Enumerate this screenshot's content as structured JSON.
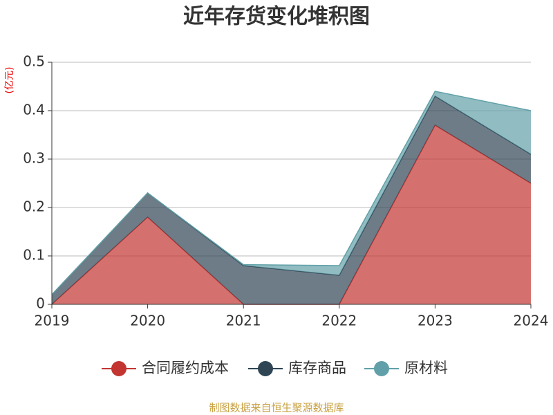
{
  "chart_data": {
    "type": "stacked_area",
    "title": "近年存货变化堆积图",
    "y_unit": "(亿元)",
    "source": "制图数据来自恒生聚源数据库",
    "categories": [
      "2019",
      "2020",
      "2021",
      "2022",
      "2023",
      "2024"
    ],
    "series": [
      {
        "name": "合同履约成本",
        "color": "#c23531",
        "values": [
          0,
          0.18,
          0,
          0,
          0.37,
          0.25
        ]
      },
      {
        "name": "库存商品",
        "color": "#2f4554",
        "values": [
          0.02,
          0.05,
          0.08,
          0.06,
          0.06,
          0.06
        ]
      },
      {
        "name": "原材料",
        "color": "#61a0a8",
        "values": [
          0,
          0,
          0.002,
          0.02,
          0.01,
          0.09
        ]
      }
    ],
    "ylim": [
      0,
      0.5
    ],
    "yticks": [
      0,
      0.1,
      0.2,
      0.3,
      0.4,
      0.5
    ],
    "grid": true
  }
}
